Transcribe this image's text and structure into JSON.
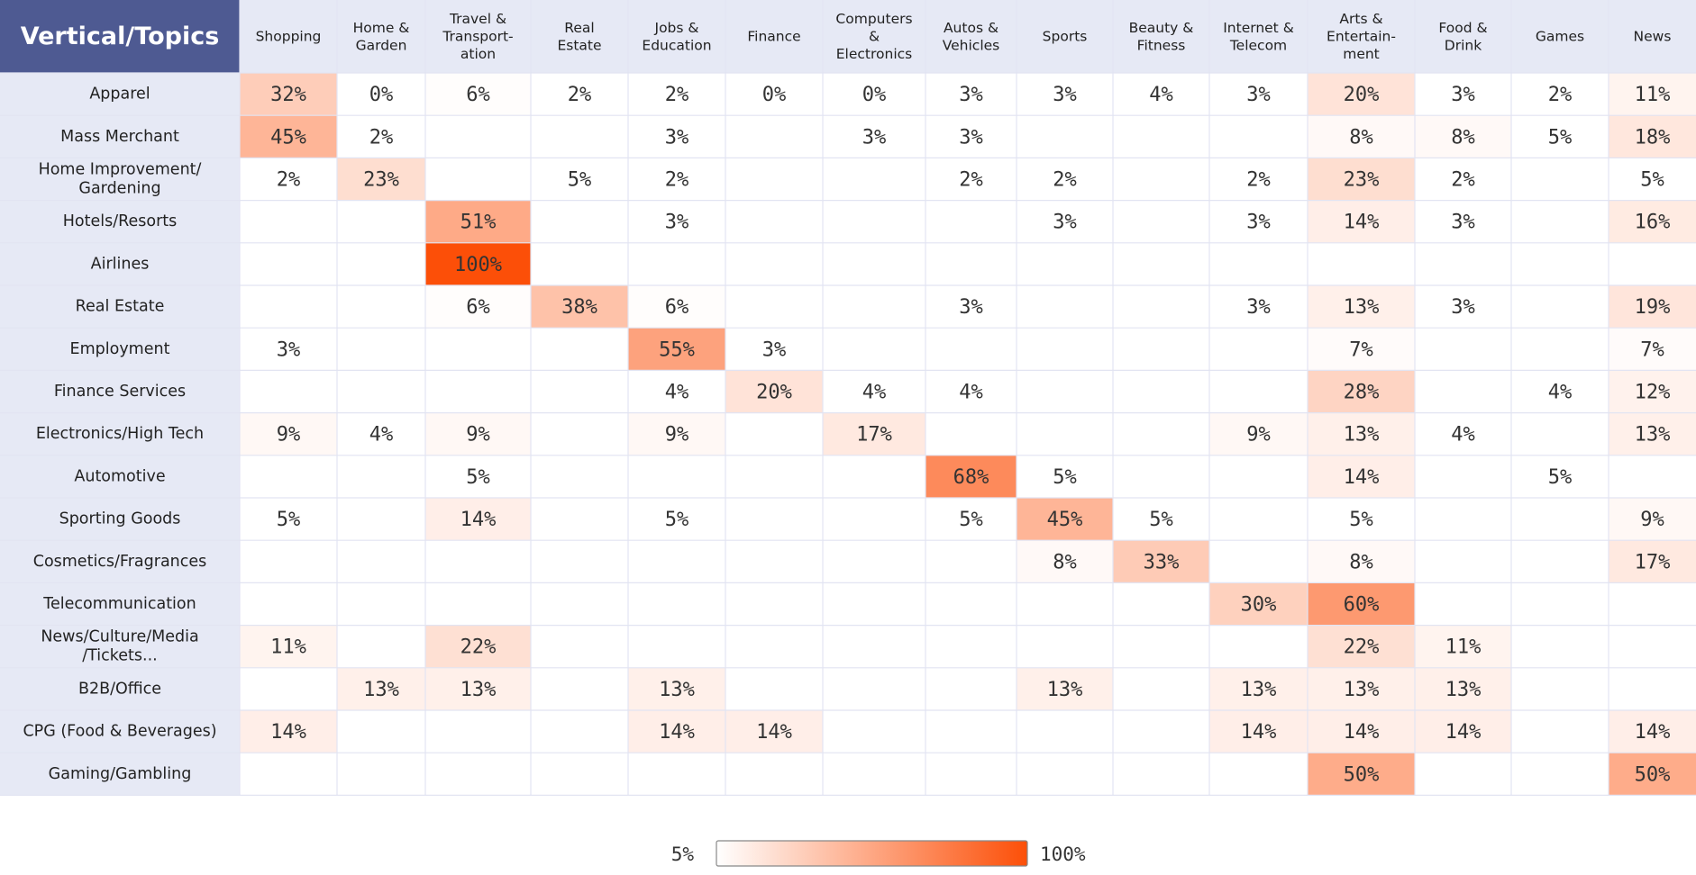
{
  "chart_data": {
    "type": "heatmap",
    "corner_title": "Vertical/Topics",
    "columns": [
      [
        "Shopping"
      ],
      [
        "Home &",
        "Garden"
      ],
      [
        "Travel &",
        "Transport-",
        "ation"
      ],
      [
        "Real",
        "Estate"
      ],
      [
        "Jobs &",
        "Education"
      ],
      [
        "Finance"
      ],
      [
        "Computers",
        "&",
        "Electronics"
      ],
      [
        "Autos &",
        "Vehicles"
      ],
      [
        "Sports"
      ],
      [
        "Beauty &",
        "Fitness"
      ],
      [
        "Internet &",
        "Telecom"
      ],
      [
        "Arts &",
        "Entertain-",
        "ment"
      ],
      [
        "Food &",
        "Drink"
      ],
      [
        "Games"
      ],
      [
        "News"
      ]
    ],
    "rows": [
      [
        "Apparel"
      ],
      [
        "Mass Merchant"
      ],
      [
        "Home Improvement/",
        "Gardening"
      ],
      [
        "Hotels/Resorts"
      ],
      [
        "Airlines"
      ],
      [
        "Real Estate"
      ],
      [
        "Employment"
      ],
      [
        "Finance Services"
      ],
      [
        "Electronics/High Tech"
      ],
      [
        "Automotive"
      ],
      [
        "Sporting Goods"
      ],
      [
        "Cosmetics/Fragrances"
      ],
      [
        "Telecommunication"
      ],
      [
        "News/Culture/Media",
        "/Tickets..."
      ],
      [
        "B2B/Office"
      ],
      [
        "CPG (Food & Beverages)"
      ],
      [
        "Gaming/Gambling"
      ]
    ],
    "values": [
      [
        32,
        0,
        6,
        2,
        2,
        0,
        0,
        3,
        3,
        4,
        3,
        20,
        3,
        2,
        11
      ],
      [
        45,
        2,
        null,
        null,
        3,
        null,
        3,
        3,
        null,
        null,
        null,
        8,
        8,
        5,
        18
      ],
      [
        2,
        23,
        null,
        5,
        2,
        null,
        null,
        2,
        2,
        null,
        2,
        23,
        2,
        null,
        5
      ],
      [
        null,
        null,
        51,
        null,
        3,
        null,
        null,
        null,
        3,
        null,
        3,
        14,
        3,
        null,
        16
      ],
      [
        null,
        null,
        100,
        null,
        null,
        null,
        null,
        null,
        null,
        null,
        null,
        null,
        null,
        null,
        null
      ],
      [
        null,
        null,
        6,
        38,
        6,
        null,
        null,
        3,
        null,
        null,
        3,
        13,
        3,
        null,
        19
      ],
      [
        3,
        null,
        null,
        null,
        55,
        3,
        null,
        null,
        null,
        null,
        null,
        7,
        null,
        null,
        7
      ],
      [
        null,
        null,
        null,
        null,
        4,
        20,
        4,
        4,
        null,
        null,
        null,
        28,
        null,
        4,
        12
      ],
      [
        9,
        4,
        9,
        null,
        9,
        null,
        17,
        null,
        null,
        null,
        9,
        13,
        4,
        null,
        13
      ],
      [
        null,
        null,
        5,
        null,
        null,
        null,
        null,
        68,
        5,
        null,
        null,
        14,
        null,
        5,
        null
      ],
      [
        5,
        null,
        14,
        null,
        5,
        null,
        null,
        5,
        45,
        5,
        null,
        5,
        null,
        null,
        9
      ],
      [
        null,
        null,
        null,
        null,
        null,
        null,
        null,
        null,
        8,
        33,
        null,
        8,
        null,
        null,
        17
      ],
      [
        null,
        null,
        null,
        null,
        null,
        null,
        null,
        null,
        null,
        null,
        30,
        60,
        null,
        null,
        null
      ],
      [
        11,
        null,
        22,
        null,
        null,
        null,
        null,
        null,
        null,
        null,
        null,
        22,
        11,
        null,
        null
      ],
      [
        null,
        13,
        13,
        null,
        13,
        null,
        null,
        null,
        13,
        null,
        13,
        13,
        13,
        null,
        null
      ],
      [
        14,
        null,
        null,
        null,
        14,
        14,
        null,
        null,
        null,
        null,
        14,
        14,
        14,
        null,
        14
      ],
      [
        null,
        null,
        null,
        null,
        null,
        null,
        null,
        null,
        null,
        null,
        null,
        50,
        null,
        null,
        50
      ]
    ],
    "value_suffix": "%",
    "color_scale": {
      "min": 5,
      "max": 100,
      "min_color": "#ffffff",
      "max_color": "#fc4f08"
    },
    "legend": {
      "min_label": "5%",
      "max_label": "100%"
    }
  },
  "colors": {
    "corner_bg": "#4e5a92",
    "header_bg": "#e6e9f5",
    "grid_line": "#e2e4f2",
    "text": "#333333"
  }
}
